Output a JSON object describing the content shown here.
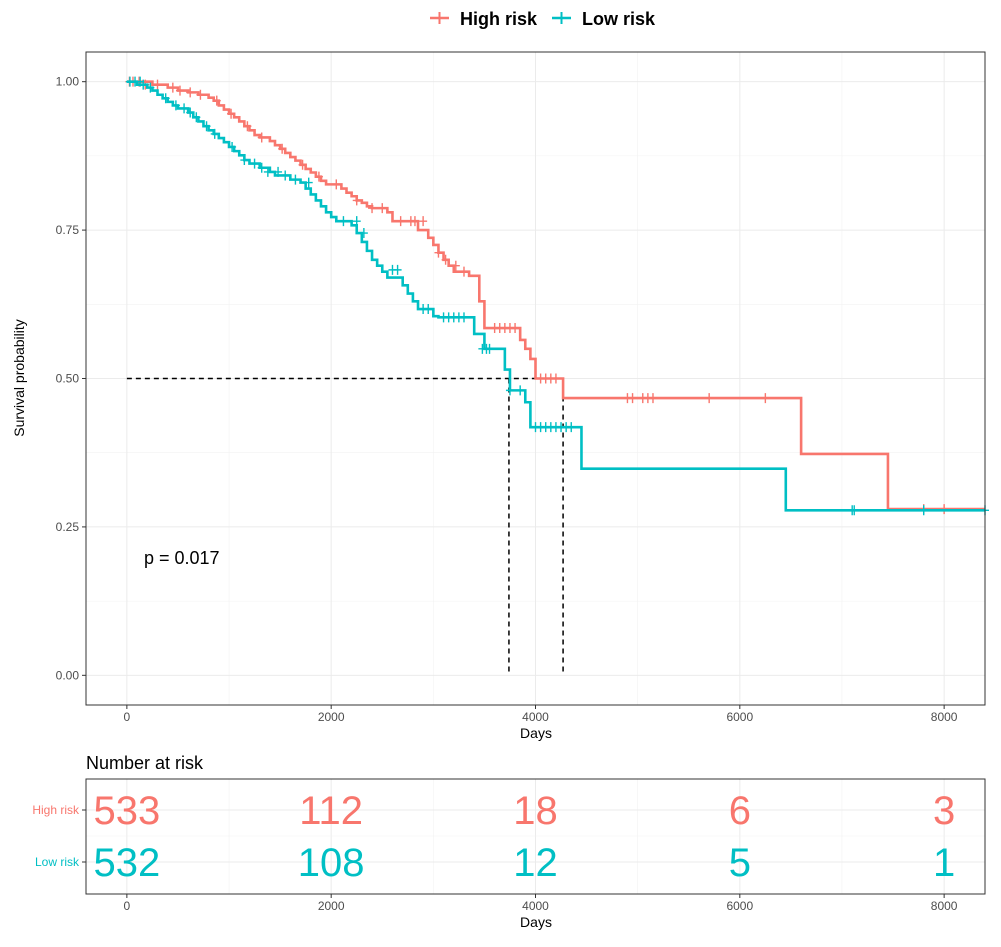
{
  "chart_data": [
    {
      "type": "line",
      "subtype": "kaplan-meier",
      "title": "",
      "xlabel": "Days",
      "ylabel": "Survival probability",
      "xlim": [
        -400,
        8400
      ],
      "ylim": [
        -0.05,
        1.05
      ],
      "x_ticks": [
        0,
        2000,
        4000,
        6000,
        8000
      ],
      "y_ticks": [
        0.0,
        0.25,
        0.5,
        0.75,
        1.0
      ],
      "y_tick_labels": [
        "0.00",
        "0.25",
        "0.50",
        "0.75",
        "1.00"
      ],
      "grid": true,
      "legend": {
        "position": "top",
        "entries": [
          "High risk",
          "Low risk"
        ]
      },
      "annotation": "p = 0.017",
      "median_line": {
        "y": 0.5,
        "x_values": [
          3740,
          4270
        ]
      },
      "series": [
        {
          "name": "High risk",
          "color": "#F8766D",
          "x": [
            0,
            250,
            400,
            500,
            600,
            700,
            800,
            850,
            900,
            950,
            1000,
            1050,
            1100,
            1150,
            1200,
            1250,
            1300,
            1400,
            1450,
            1500,
            1550,
            1600,
            1650,
            1700,
            1750,
            1800,
            1850,
            1900,
            1950,
            2100,
            2150,
            2200,
            2250,
            2300,
            2350,
            2400,
            2550,
            2600,
            2850,
            2950,
            3000,
            3050,
            3100,
            3150,
            3200,
            3350,
            3450,
            3500,
            3850,
            3900,
            3950,
            4000,
            4270,
            6600,
            7450,
            8400
          ],
          "y": [
            1.0,
            0.995,
            0.99,
            0.985,
            0.982,
            0.978,
            0.973,
            0.968,
            0.96,
            0.953,
            0.946,
            0.94,
            0.933,
            0.925,
            0.918,
            0.91,
            0.906,
            0.9,
            0.893,
            0.887,
            0.88,
            0.873,
            0.867,
            0.86,
            0.853,
            0.847,
            0.84,
            0.833,
            0.827,
            0.82,
            0.813,
            0.807,
            0.8,
            0.796,
            0.79,
            0.787,
            0.78,
            0.765,
            0.75,
            0.737,
            0.725,
            0.712,
            0.7,
            0.69,
            0.68,
            0.673,
            0.63,
            0.585,
            0.565,
            0.55,
            0.533,
            0.5,
            0.467,
            0.373,
            0.28,
            0.28
          ],
          "censor_x": [
            25,
            60,
            120,
            180,
            300,
            450,
            520,
            620,
            720,
            880,
            1020,
            1180,
            1320,
            1520,
            1720,
            1880,
            2050,
            2250,
            2400,
            2500,
            2680,
            2780,
            2820,
            2900,
            3050,
            3120,
            3220,
            3300,
            3600,
            3650,
            3700,
            3750,
            3800,
            4050,
            4100,
            4150,
            4200,
            4900,
            4950,
            5050,
            5100,
            5150,
            5700,
            6250,
            7800,
            8000
          ],
          "censor_y": [
            1.0,
            1.0,
            1.0,
            0.995,
            0.995,
            0.99,
            0.985,
            0.982,
            0.978,
            0.968,
            0.946,
            0.925,
            0.906,
            0.887,
            0.86,
            0.84,
            0.827,
            0.8,
            0.787,
            0.787,
            0.765,
            0.765,
            0.765,
            0.765,
            0.712,
            0.7,
            0.69,
            0.68,
            0.585,
            0.585,
            0.585,
            0.585,
            0.585,
            0.5,
            0.5,
            0.5,
            0.5,
            0.467,
            0.467,
            0.467,
            0.467,
            0.467,
            0.467,
            0.467,
            0.28,
            0.28
          ]
        },
        {
          "name": "Low risk",
          "color": "#00BFC4",
          "x": [
            0,
            100,
            200,
            250,
            300,
            350,
            400,
            450,
            500,
            600,
            650,
            700,
            750,
            800,
            850,
            900,
            950,
            1000,
            1050,
            1100,
            1150,
            1200,
            1300,
            1400,
            1450,
            1600,
            1700,
            1750,
            1800,
            1850,
            1900,
            1950,
            2000,
            2050,
            2200,
            2250,
            2300,
            2350,
            2400,
            2450,
            2500,
            2550,
            2700,
            2750,
            2800,
            2850,
            3000,
            3050,
            3400,
            3500,
            3700,
            3750,
            3900,
            3950,
            4000,
            4450,
            6450,
            8400
          ],
          "y": [
            1.0,
            0.995,
            0.99,
            0.985,
            0.978,
            0.972,
            0.966,
            0.96,
            0.955,
            0.948,
            0.94,
            0.933,
            0.925,
            0.918,
            0.912,
            0.905,
            0.898,
            0.89,
            0.883,
            0.876,
            0.868,
            0.862,
            0.855,
            0.848,
            0.842,
            0.835,
            0.83,
            0.82,
            0.81,
            0.8,
            0.79,
            0.78,
            0.772,
            0.765,
            0.758,
            0.745,
            0.73,
            0.715,
            0.7,
            0.69,
            0.68,
            0.67,
            0.657,
            0.643,
            0.63,
            0.617,
            0.605,
            0.603,
            0.575,
            0.55,
            0.515,
            0.48,
            0.46,
            0.418,
            0.418,
            0.348,
            0.278,
            0.278
          ],
          "censor_x": [
            30,
            80,
            130,
            160,
            230,
            380,
            480,
            560,
            620,
            680,
            780,
            860,
            1030,
            1150,
            1250,
            1320,
            1380,
            1480,
            1550,
            1650,
            1780,
            2120,
            2250,
            2320,
            2600,
            2650,
            2900,
            2950,
            3100,
            3150,
            3200,
            3250,
            3300,
            3480,
            3520,
            3550,
            3750,
            3850,
            4000,
            4050,
            4100,
            4150,
            4200,
            4250,
            4300,
            4350,
            7100,
            7120,
            7800,
            8400
          ],
          "censor_y": [
            1.0,
            1.0,
            1.0,
            0.995,
            0.99,
            0.972,
            0.96,
            0.955,
            0.948,
            0.94,
            0.925,
            0.912,
            0.89,
            0.868,
            0.862,
            0.855,
            0.848,
            0.848,
            0.842,
            0.835,
            0.83,
            0.765,
            0.765,
            0.745,
            0.683,
            0.683,
            0.617,
            0.617,
            0.603,
            0.603,
            0.603,
            0.603,
            0.603,
            0.55,
            0.55,
            0.55,
            0.48,
            0.48,
            0.418,
            0.418,
            0.418,
            0.418,
            0.418,
            0.418,
            0.418,
            0.418,
            0.278,
            0.278,
            0.278,
            0.278
          ]
        }
      ]
    },
    {
      "type": "table",
      "title": "Number at risk",
      "xlabel": "Days",
      "xlim": [
        -400,
        8400
      ],
      "x_ticks": [
        0,
        2000,
        4000,
        6000,
        8000
      ],
      "grid": true,
      "rows": [
        {
          "label": "High risk",
          "color": "#F8766D",
          "values": [
            533,
            112,
            18,
            6,
            3
          ]
        },
        {
          "label": "Low risk",
          "color": "#00BFC4",
          "values": [
            532,
            108,
            12,
            5,
            1
          ]
        }
      ]
    }
  ]
}
